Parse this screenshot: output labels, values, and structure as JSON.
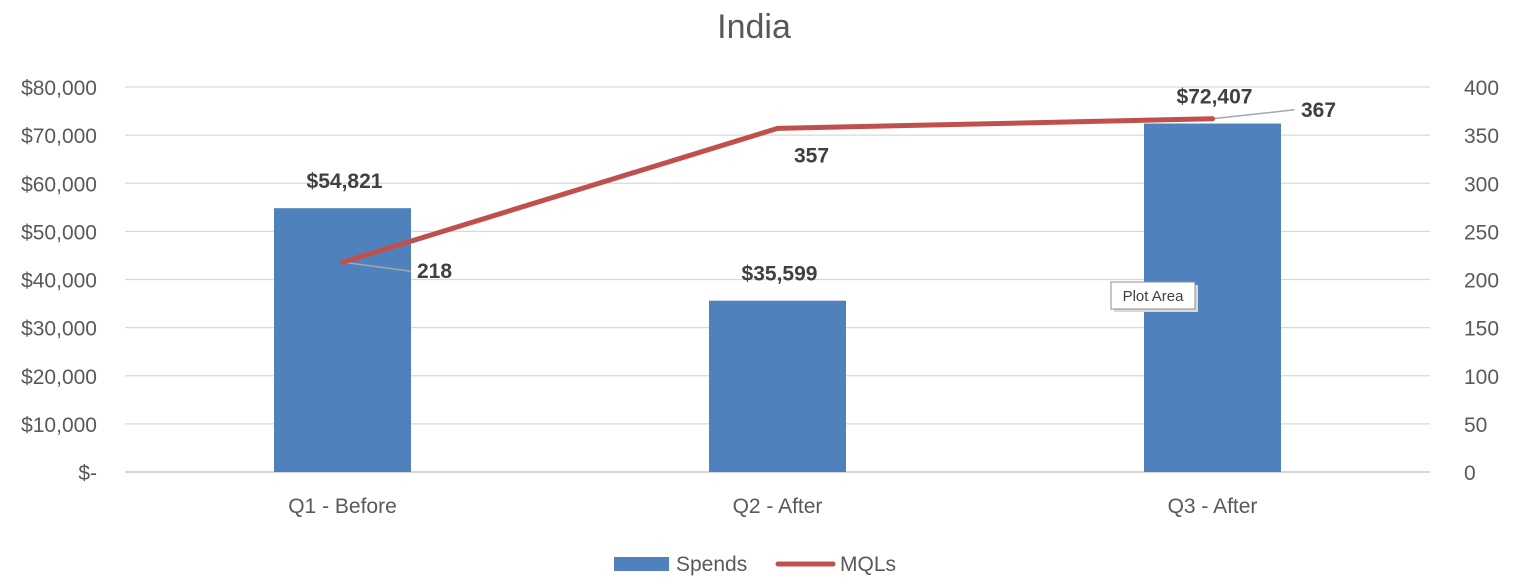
{
  "chart_data": {
    "type": "bar+line",
    "title": "India",
    "categories": [
      "Q1 - Before",
      "Q2 - After",
      "Q3 - After"
    ],
    "series": [
      {
        "name": "Spends",
        "type": "bar",
        "axis": "left",
        "values": [
          54821,
          35599,
          72407
        ],
        "labels": [
          "$54,821",
          "$35,599",
          "$72,407"
        ],
        "color": "#4F81BD"
      },
      {
        "name": "MQLs",
        "type": "line",
        "axis": "right",
        "values": [
          218,
          357,
          367
        ],
        "labels": [
          "218",
          "357",
          "367"
        ],
        "color": "#C0504D"
      }
    ],
    "y_left": {
      "range": [
        0,
        80000
      ],
      "ticks": [
        0,
        10000,
        20000,
        30000,
        40000,
        50000,
        60000,
        70000,
        80000
      ],
      "tick_labels": [
        "$-",
        "$10,000",
        "$20,000",
        "$30,000",
        "$40,000",
        "$50,000",
        "$60,000",
        "$70,000",
        "$80,000"
      ]
    },
    "y_right": {
      "range": [
        0,
        400
      ],
      "ticks": [
        0,
        50,
        100,
        150,
        200,
        250,
        300,
        350,
        400
      ],
      "tick_labels": [
        "0",
        "50",
        "100",
        "150",
        "200",
        "250",
        "300",
        "350",
        "400"
      ]
    },
    "grid": true,
    "legend_position": "bottom",
    "tooltip": "Plot Area"
  }
}
